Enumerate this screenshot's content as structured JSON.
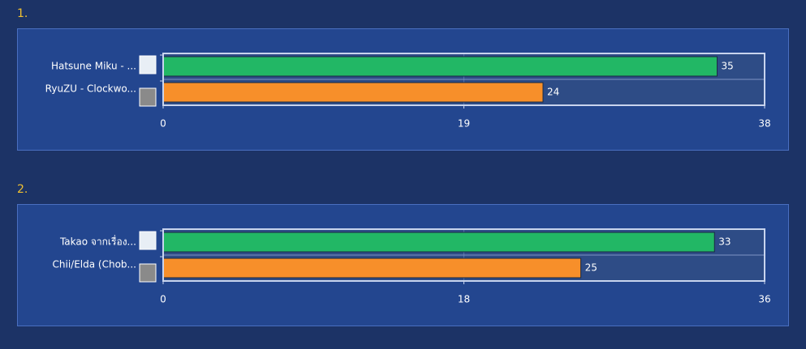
{
  "chart_data": [
    {
      "type": "bar",
      "orientation": "horizontal",
      "title": "1.",
      "categories": [
        "Hatsune Miku - ...",
        "RyuZU - Clockwo..."
      ],
      "values": [
        35,
        24
      ],
      "colors": [
        "#22b765",
        "#f78f2a"
      ],
      "xlim": [
        0,
        38
      ],
      "xticks": [
        0,
        19,
        38
      ],
      "grid": true
    },
    {
      "type": "bar",
      "orientation": "horizontal",
      "title": "2.",
      "categories": [
        "Takao จากเรื่อง...",
        "Chii/Elda (Chob..."
      ],
      "values": [
        33,
        25
      ],
      "colors": [
        "#22b765",
        "#f78f2a"
      ],
      "xlim": [
        0,
        36
      ],
      "xticks": [
        0,
        18,
        36
      ],
      "grid": true
    }
  ]
}
